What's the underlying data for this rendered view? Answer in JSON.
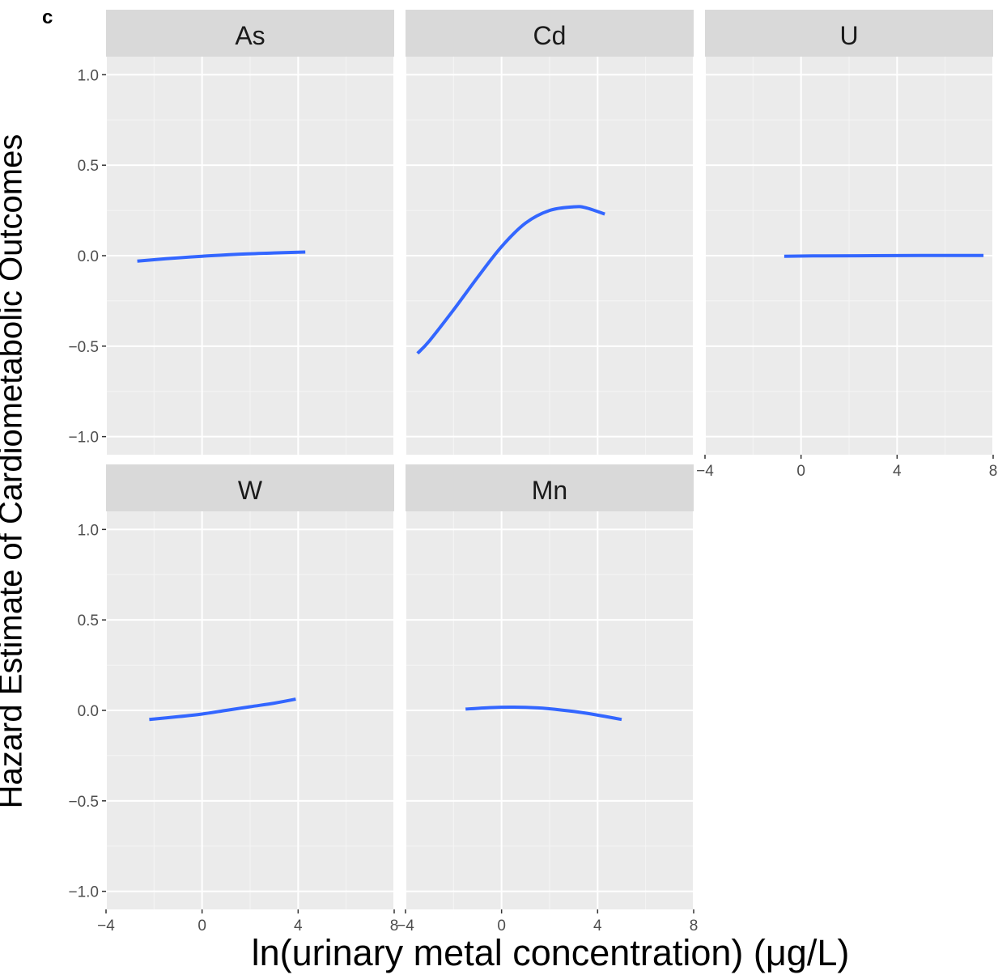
{
  "figure": {
    "panel_label": "c",
    "xlabel": "ln(urinary metal concentration)   (μg/L)",
    "ylabel": "Hazard Estimate of Cardiometabolic Outcomes"
  },
  "chart_data": {
    "type": "line",
    "layout": "faceted 3 columns x 2 rows",
    "xlim": [
      -4,
      8
    ],
    "ylim": [
      -1.1,
      1.1
    ],
    "x_ticks": [
      -4,
      0,
      4,
      8
    ],
    "x_tick_labels": [
      "−4",
      "0",
      "4",
      "8"
    ],
    "y_ticks": [
      -1.0,
      -0.5,
      0.0,
      0.5,
      1.0
    ],
    "y_tick_labels": [
      "−1.0",
      "−0.5",
      "0.0",
      "0.5",
      "1.0"
    ],
    "line_color": "#3366FF",
    "panel_bg": "#EBEBEB",
    "strip_bg": "#D9D9D9",
    "grid": true,
    "facets": [
      {
        "name": "As",
        "x": [
          -2.7,
          -1.5,
          0,
          1.5,
          3,
          4.3
        ],
        "y": [
          -0.03,
          -0.017,
          -0.003,
          0.008,
          0.015,
          0.02
        ]
      },
      {
        "name": "Cd",
        "x": [
          -3.5,
          -3,
          -2,
          -1,
          0,
          1,
          2,
          3,
          3.5,
          4.3
        ],
        "y": [
          -0.54,
          -0.47,
          -0.3,
          -0.12,
          0.05,
          0.18,
          0.25,
          0.27,
          0.265,
          0.23
        ]
      },
      {
        "name": "U",
        "x": [
          -0.7,
          1,
          3,
          5,
          7,
          7.6
        ],
        "y": [
          -0.003,
          -0.001,
          0.0,
          0.001,
          0.001,
          0.001
        ]
      },
      {
        "name": "W",
        "x": [
          -2.2,
          -1,
          0,
          1,
          2,
          3,
          3.9
        ],
        "y": [
          -0.05,
          -0.035,
          -0.02,
          0.0,
          0.02,
          0.04,
          0.062
        ]
      },
      {
        "name": "Mn",
        "x": [
          -1.5,
          -0.5,
          0.5,
          1.5,
          2.5,
          3.5,
          5
        ],
        "y": [
          0.007,
          0.015,
          0.018,
          0.014,
          0.002,
          -0.015,
          -0.05
        ]
      }
    ]
  }
}
